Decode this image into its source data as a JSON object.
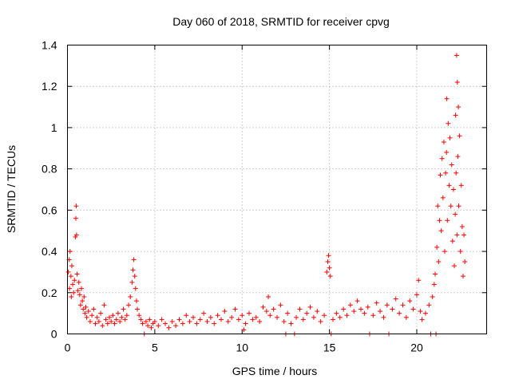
{
  "chart_data": {
    "type": "scatter",
    "title": "Day 060 of 2018, SRMTID for receiver cpvg",
    "xlabel": "GPS time / hours",
    "ylabel": "SRMTID / TECUs",
    "xlim": [
      0,
      24
    ],
    "ylim": [
      0,
      1.4
    ],
    "xticks": [
      0,
      5,
      10,
      15,
      20
    ],
    "xtick_labels": [
      "0",
      "5",
      "10",
      "15",
      "20"
    ],
    "yticks": [
      0,
      0.2,
      0.4,
      0.6,
      0.8,
      1.0,
      1.2,
      1.4
    ],
    "ytick_labels": [
      "0",
      "0.2",
      "0.4",
      "0.6",
      "0.8",
      "1",
      "1.2",
      "1.4"
    ],
    "grid": true,
    "marker": "+",
    "color": "#ff0000",
    "series": [
      {
        "name": "SRMTID",
        "points": [
          [
            0.05,
            0.3
          ],
          [
            0.1,
            0.36
          ],
          [
            0.12,
            0.22
          ],
          [
            0.15,
            0.4
          ],
          [
            0.2,
            0.28
          ],
          [
            0.22,
            0.18
          ],
          [
            0.25,
            0.33
          ],
          [
            0.3,
            0.24
          ],
          [
            0.35,
            0.2
          ],
          [
            0.4,
            0.26
          ],
          [
            0.45,
            0.47
          ],
          [
            0.48,
            0.56
          ],
          [
            0.5,
            0.62
          ],
          [
            0.52,
            0.48
          ],
          [
            0.55,
            0.29
          ],
          [
            0.6,
            0.21
          ],
          [
            0.65,
            0.25
          ],
          [
            0.7,
            0.19
          ],
          [
            0.75,
            0.14
          ],
          [
            0.8,
            0.22
          ],
          [
            0.85,
            0.16
          ],
          [
            0.9,
            0.12
          ],
          [
            0.95,
            0.18
          ],
          [
            1.0,
            0.1
          ],
          [
            1.05,
            0.13
          ],
          [
            1.1,
            0.08
          ],
          [
            1.2,
            0.11
          ],
          [
            1.3,
            0.06
          ],
          [
            1.4,
            0.09
          ],
          [
            1.5,
            0.12
          ],
          [
            1.6,
            0.05
          ],
          [
            1.7,
            0.08
          ],
          [
            1.8,
            0.06
          ],
          [
            1.9,
            0.1
          ],
          [
            2.0,
            0.04
          ],
          [
            2.1,
            0.14
          ],
          [
            2.2,
            0.07
          ],
          [
            2.3,
            0.05
          ],
          [
            2.4,
            0.08
          ],
          [
            2.5,
            0.06
          ],
          [
            2.6,
            0.09
          ],
          [
            2.7,
            0.05
          ],
          [
            2.8,
            0.07
          ],
          [
            2.9,
            0.1
          ],
          [
            3.0,
            0.06
          ],
          [
            3.1,
            0.08
          ],
          [
            3.2,
            0.12
          ],
          [
            3.3,
            0.07
          ],
          [
            3.4,
            0.09
          ],
          [
            3.5,
            0.14
          ],
          [
            3.6,
            0.18
          ],
          [
            3.7,
            0.25
          ],
          [
            3.75,
            0.31
          ],
          [
            3.8,
            0.36
          ],
          [
            3.85,
            0.28
          ],
          [
            3.9,
            0.22
          ],
          [
            3.95,
            0.16
          ],
          [
            4.0,
            0.12
          ],
          [
            4.1,
            0.09
          ],
          [
            4.2,
            0.07
          ],
          [
            4.3,
            0.05
          ],
          [
            4.4,
            0.0
          ],
          [
            4.5,
            0.06
          ],
          [
            4.6,
            0.04
          ],
          [
            4.7,
            0.07
          ],
          [
            4.8,
            0.03
          ],
          [
            4.9,
            0.05
          ],
          [
            5.0,
            0.06
          ],
          [
            5.2,
            0.04
          ],
          [
            5.4,
            0.07
          ],
          [
            5.6,
            0.05
          ],
          [
            5.8,
            0.03
          ],
          [
            6.0,
            0.06
          ],
          [
            6.2,
            0.04
          ],
          [
            6.4,
            0.07
          ],
          [
            6.6,
            0.05
          ],
          [
            6.8,
            0.09
          ],
          [
            7.0,
            0.06
          ],
          [
            7.2,
            0.08
          ],
          [
            7.4,
            0.05
          ],
          [
            7.6,
            0.07
          ],
          [
            7.8,
            0.1
          ],
          [
            8.0,
            0.06
          ],
          [
            8.2,
            0.08
          ],
          [
            8.4,
            0.05
          ],
          [
            8.6,
            0.09
          ],
          [
            8.8,
            0.07
          ],
          [
            9.0,
            0.11
          ],
          [
            9.2,
            0.06
          ],
          [
            9.4,
            0.08
          ],
          [
            9.6,
            0.12
          ],
          [
            9.8,
            0.07
          ],
          [
            10.0,
            0.09
          ],
          [
            10.1,
            0.02
          ],
          [
            10.2,
            0.05
          ],
          [
            10.4,
            0.1
          ],
          [
            10.6,
            0.07
          ],
          [
            10.8,
            0.08
          ],
          [
            11.0,
            0.06
          ],
          [
            11.2,
            0.13
          ],
          [
            11.4,
            0.11
          ],
          [
            11.5,
            0.18
          ],
          [
            11.6,
            0.09
          ],
          [
            11.8,
            0.12
          ],
          [
            12.0,
            0.08
          ],
          [
            12.2,
            0.14
          ],
          [
            12.4,
            0.06
          ],
          [
            12.5,
            0.0
          ],
          [
            12.6,
            0.1
          ],
          [
            12.8,
            0.05
          ],
          [
            13.0,
            0.0
          ],
          [
            13.1,
            0.08
          ],
          [
            13.3,
            0.12
          ],
          [
            13.5,
            0.07
          ],
          [
            13.7,
            0.1
          ],
          [
            13.9,
            0.13
          ],
          [
            14.1,
            0.08
          ],
          [
            14.3,
            0.11
          ],
          [
            14.5,
            0.06
          ],
          [
            14.7,
            0.09
          ],
          [
            14.85,
            0.3
          ],
          [
            14.9,
            0.35
          ],
          [
            14.95,
            0.38
          ],
          [
            15.0,
            0.32
          ],
          [
            15.05,
            0.28
          ],
          [
            15.1,
            0.0
          ],
          [
            15.2,
            0.07
          ],
          [
            15.4,
            0.1
          ],
          [
            15.6,
            0.08
          ],
          [
            15.8,
            0.12
          ],
          [
            16.0,
            0.09
          ],
          [
            16.2,
            0.14
          ],
          [
            16.4,
            0.11
          ],
          [
            16.6,
            0.16
          ],
          [
            16.8,
            0.12
          ],
          [
            17.0,
            0.1
          ],
          [
            17.2,
            0.13
          ],
          [
            17.3,
            0.0
          ],
          [
            17.5,
            0.09
          ],
          [
            17.7,
            0.15
          ],
          [
            17.9,
            0.11
          ],
          [
            18.1,
            0.08
          ],
          [
            18.3,
            0.14
          ],
          [
            18.4,
            0.0
          ],
          [
            18.6,
            0.12
          ],
          [
            18.8,
            0.17
          ],
          [
            19.0,
            0.1
          ],
          [
            19.2,
            0.14
          ],
          [
            19.4,
            0.08
          ],
          [
            19.6,
            0.16
          ],
          [
            19.8,
            0.12
          ],
          [
            20.0,
            0.19
          ],
          [
            20.1,
            0.26
          ],
          [
            20.2,
            0.11
          ],
          [
            20.3,
            0.07
          ],
          [
            20.5,
            0.1
          ],
          [
            20.7,
            0.14
          ],
          [
            20.8,
            0.0
          ],
          [
            20.9,
            0.18
          ],
          [
            21.0,
            0.24
          ],
          [
            21.05,
            0.29
          ],
          [
            21.1,
            0.0
          ],
          [
            21.15,
            0.42
          ],
          [
            21.2,
            0.62
          ],
          [
            21.25,
            0.35
          ],
          [
            21.3,
            0.55
          ],
          [
            21.35,
            0.77
          ],
          [
            21.4,
            0.5
          ],
          [
            21.45,
            0.85
          ],
          [
            21.5,
            0.66
          ],
          [
            21.55,
            0.93
          ],
          [
            21.6,
            0.4
          ],
          [
            21.65,
            0.78
          ],
          [
            21.7,
            0.88
          ],
          [
            21.72,
            1.14
          ],
          [
            21.75,
            0.55
          ],
          [
            21.8,
            1.02
          ],
          [
            21.85,
            0.72
          ],
          [
            21.9,
            0.95
          ],
          [
            21.95,
            0.62
          ],
          [
            22.0,
            0.82
          ],
          [
            22.05,
            0.45
          ],
          [
            22.1,
            0.7
          ],
          [
            22.15,
            0.33
          ],
          [
            22.2,
            0.58
          ],
          [
            22.22,
            1.06
          ],
          [
            22.25,
            0.78
          ],
          [
            22.28,
            1.35
          ],
          [
            22.3,
            0.48
          ],
          [
            22.32,
            1.22
          ],
          [
            22.35,
            0.86
          ],
          [
            22.38,
            1.1
          ],
          [
            22.4,
            0.62
          ],
          [
            22.45,
            0.96
          ],
          [
            22.5,
            0.4
          ],
          [
            22.55,
            0.72
          ],
          [
            22.6,
            0.52
          ],
          [
            22.65,
            0.28
          ],
          [
            22.7,
            0.48
          ],
          [
            22.75,
            0.35
          ]
        ]
      }
    ]
  }
}
